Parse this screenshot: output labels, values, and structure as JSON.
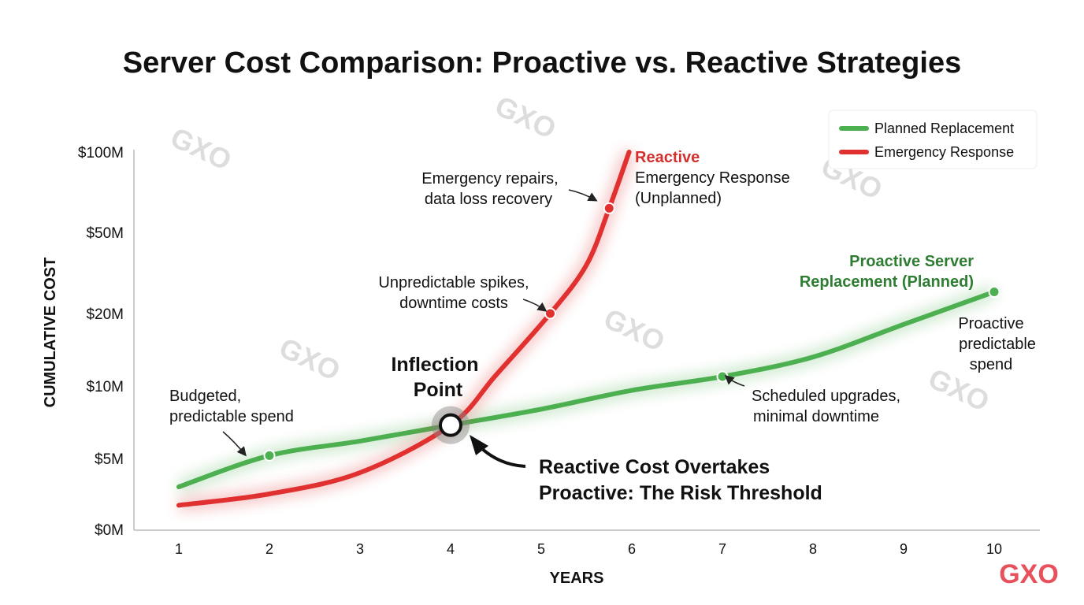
{
  "chart_data": {
    "type": "line",
    "title": "Server Cost Comparison: Proactive vs. Reactive Strategies",
    "xlabel": "YEARS",
    "ylabel": "CUMULATIVE COST",
    "x_ticks": [
      1,
      2,
      3,
      4,
      5,
      6,
      7,
      8,
      9,
      10
    ],
    "y_ticks": [
      "$0M",
      "$5M",
      "$10M",
      "$20M",
      "$50M",
      "$100M"
    ],
    "y_tick_values": [
      0,
      5,
      10,
      20,
      50,
      100
    ],
    "xlim": [
      1,
      10
    ],
    "ylim": [
      0,
      100
    ],
    "grid": false,
    "legend_placement": "top-right",
    "legend": [
      "Planned Replacement",
      "Emergency Response"
    ],
    "series": [
      {
        "name": "Planned Replacement",
        "color": "#4caf50",
        "x": [
          1,
          2,
          3,
          4,
          5,
          6,
          7,
          8,
          9,
          10
        ],
        "y": [
          3,
          5.2,
          6.2,
          7.3,
          8.4,
          9.7,
          11.3,
          14,
          18.5,
          28
        ],
        "markers": [
          2,
          7,
          10
        ]
      },
      {
        "name": "Emergency Response",
        "color": "#e03030",
        "x": [
          1,
          2,
          3,
          4,
          4.5,
          5.1,
          5.5,
          5.75,
          5.97
        ],
        "y": [
          1.7,
          2.5,
          4,
          7.3,
          11.5,
          20,
          38,
          65,
          100
        ],
        "markers": [
          5.1,
          5.75
        ]
      }
    ],
    "inflection": {
      "x": 4,
      "y": 7.3,
      "label_line1": "Inflection",
      "label_line2": "Point"
    },
    "annotations": {
      "budgeted": [
        "Budgeted,",
        "predictable spend"
      ],
      "spikes": [
        "Unpredictable spikes,",
        "downtime costs"
      ],
      "repairs": [
        "Emergency repairs,",
        "data loss recovery"
      ],
      "reactive_title": "Reactive",
      "reactive_sub": [
        "Emergency Response",
        "(Unplanned)"
      ],
      "proactive_title": [
        "Proactive Server",
        "Replacement (Planned)"
      ],
      "proactive_sub": [
        "Proactive",
        "predictable",
        "spend"
      ],
      "scheduled": [
        "Scheduled upgrades,",
        "minimal downtime"
      ],
      "overtakes": [
        "Reactive Cost Overtakes",
        "Proactive: The Risk Threshold"
      ]
    },
    "watermark": "GXO",
    "logo": "GXO"
  }
}
